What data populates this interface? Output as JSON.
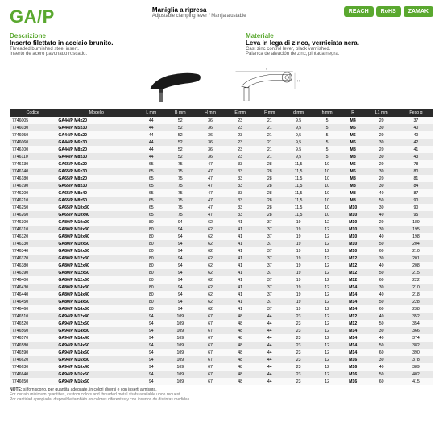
{
  "header": {
    "code": "GA/P",
    "title_it": "Maniglia a ripresa",
    "title_en": "Adjustable clamping lever / Manija ajustable",
    "badges": [
      "REACH",
      "RoHS",
      "ZAMAK"
    ]
  },
  "desc": {
    "label": "Descrizione",
    "it": "Inserto filettato in acciaio brunito.",
    "en": "Threaded burnished steel insert.",
    "es": "Inserto de acero pavonado roscado."
  },
  "mat": {
    "label": "Materiale",
    "it": "Leva in lega di zinco, verniciata nera.",
    "en": "Cast zinc control lever, black varnished.",
    "es": "Palanca de aleación de zinc, pintada negra."
  },
  "columns": [
    "Codice",
    "Modello",
    "L mm",
    "B mm",
    "H mm",
    "E mm",
    "F mm",
    "d mm",
    "h mm",
    "R",
    "L1 mm",
    "Peso g"
  ],
  "rows": [
    [
      "7746005",
      "GA44/P M4x20",
      "44",
      "52",
      "36",
      "23",
      "21",
      "9,5",
      "5",
      "M4",
      "20",
      "37"
    ],
    [
      "7746030",
      "GA44/P M5x30",
      "44",
      "52",
      "36",
      "23",
      "21",
      "9,5",
      "5",
      "M5",
      "30",
      "40"
    ],
    [
      "7746050",
      "GA44/P M6x20",
      "44",
      "52",
      "36",
      "23",
      "21",
      "9,5",
      "5",
      "M6",
      "20",
      "40"
    ],
    [
      "7746060",
      "GA44/P M6x30",
      "44",
      "52",
      "36",
      "23",
      "21",
      "9,5",
      "5",
      "M6",
      "30",
      "42"
    ],
    [
      "7746100",
      "GA44/P M8x20",
      "44",
      "52",
      "36",
      "23",
      "21",
      "9,5",
      "5",
      "M8",
      "20",
      "41"
    ],
    [
      "7746110",
      "GA44/P M8x30",
      "44",
      "52",
      "36",
      "23",
      "21",
      "9,5",
      "5",
      "M8",
      "30",
      "43"
    ],
    [
      "7746130",
      "GA65/P M6x20",
      "65",
      "75",
      "47",
      "33",
      "28",
      "11,5",
      "10",
      "M6",
      "20",
      "78"
    ],
    [
      "7746140",
      "GA65/P M6x30",
      "65",
      "75",
      "47",
      "33",
      "28",
      "11,5",
      "10",
      "M6",
      "30",
      "80"
    ],
    [
      "7746180",
      "GA65/P M8x20",
      "65",
      "75",
      "47",
      "33",
      "28",
      "11,5",
      "10",
      "M8",
      "20",
      "81"
    ],
    [
      "7746190",
      "GA65/P M8x30",
      "65",
      "75",
      "47",
      "33",
      "28",
      "11,5",
      "10",
      "M8",
      "30",
      "84"
    ],
    [
      "7746200",
      "GA65/P M8x40",
      "65",
      "75",
      "47",
      "33",
      "28",
      "11,5",
      "10",
      "M8",
      "40",
      "87"
    ],
    [
      "7746210",
      "GA65/P M8x50",
      "65",
      "75",
      "47",
      "33",
      "28",
      "11,5",
      "10",
      "M8",
      "50",
      "90"
    ],
    [
      "7746250",
      "GA65/P M10x30",
      "65",
      "75",
      "47",
      "33",
      "28",
      "11,5",
      "10",
      "M10",
      "30",
      "90"
    ],
    [
      "7746260",
      "GA65/P M10x40",
      "65",
      "75",
      "47",
      "33",
      "28",
      "11,5",
      "10",
      "M10",
      "40",
      "95"
    ],
    [
      "7746300",
      "GA80/P M10x20",
      "80",
      "94",
      "62",
      "41",
      "37",
      "19",
      "12",
      "M10",
      "20",
      "189"
    ],
    [
      "7746310",
      "GA80/P M10x30",
      "80",
      "94",
      "62",
      "41",
      "37",
      "19",
      "12",
      "M10",
      "30",
      "195"
    ],
    [
      "7746320",
      "GA80/P M10x40",
      "80",
      "94",
      "62",
      "41",
      "37",
      "19",
      "12",
      "M10",
      "40",
      "198"
    ],
    [
      "7746330",
      "GA80/P M10x50",
      "80",
      "94",
      "62",
      "41",
      "37",
      "19",
      "12",
      "M10",
      "50",
      "204"
    ],
    [
      "7746340",
      "GA80/P M10x60",
      "80",
      "94",
      "62",
      "41",
      "37",
      "19",
      "12",
      "M10",
      "60",
      "210"
    ],
    [
      "7746370",
      "GA80/P M12x30",
      "80",
      "94",
      "62",
      "41",
      "37",
      "19",
      "12",
      "M12",
      "30",
      "201"
    ],
    [
      "7746380",
      "GA80/P M12x40",
      "80",
      "94",
      "62",
      "41",
      "37",
      "19",
      "12",
      "M12",
      "40",
      "208"
    ],
    [
      "7746390",
      "GA80/P M12x50",
      "80",
      "94",
      "62",
      "41",
      "37",
      "19",
      "12",
      "M12",
      "50",
      "215"
    ],
    [
      "7746400",
      "GA80/P M12x60",
      "80",
      "94",
      "62",
      "41",
      "37",
      "19",
      "12",
      "M12",
      "60",
      "222"
    ],
    [
      "7746430",
      "GA80/P M14x30",
      "80",
      "94",
      "62",
      "41",
      "37",
      "19",
      "12",
      "M14",
      "30",
      "210"
    ],
    [
      "7746440",
      "GA80/P M14x40",
      "80",
      "94",
      "62",
      "41",
      "37",
      "19",
      "12",
      "M14",
      "40",
      "218"
    ],
    [
      "7746450",
      "GA80/P M14x50",
      "80",
      "94",
      "62",
      "41",
      "37",
      "19",
      "12",
      "M14",
      "50",
      "228"
    ],
    [
      "7746460",
      "GA80/P M14x60",
      "80",
      "94",
      "62",
      "41",
      "37",
      "19",
      "12",
      "M14",
      "60",
      "238"
    ],
    [
      "7746510",
      "GA94/P M12x40",
      "94",
      "109",
      "67",
      "48",
      "44",
      "23",
      "12",
      "M12",
      "40",
      "352"
    ],
    [
      "7746520",
      "GA94/P M12x50",
      "94",
      "109",
      "67",
      "48",
      "44",
      "23",
      "12",
      "M12",
      "50",
      "354"
    ],
    [
      "7746560",
      "GA94/P M14x30",
      "94",
      "109",
      "67",
      "48",
      "44",
      "23",
      "12",
      "M14",
      "30",
      "366"
    ],
    [
      "7746570",
      "GA94/P M14x40",
      "94",
      "109",
      "67",
      "48",
      "44",
      "23",
      "12",
      "M14",
      "40",
      "374"
    ],
    [
      "7746580",
      "GA94/P M14x50",
      "94",
      "109",
      "67",
      "48",
      "44",
      "23",
      "12",
      "M14",
      "50",
      "382"
    ],
    [
      "7746590",
      "GA94/P M14x60",
      "94",
      "109",
      "67",
      "48",
      "44",
      "23",
      "12",
      "M14",
      "60",
      "390"
    ],
    [
      "7746620",
      "GA94/P M16x30",
      "94",
      "109",
      "67",
      "48",
      "44",
      "23",
      "12",
      "M16",
      "30",
      "378"
    ],
    [
      "7746630",
      "GA94/P M16x40",
      "94",
      "109",
      "67",
      "48",
      "44",
      "23",
      "12",
      "M16",
      "40",
      "389"
    ],
    [
      "7746640",
      "GA94/P M16x50",
      "94",
      "109",
      "67",
      "48",
      "44",
      "23",
      "12",
      "M16",
      "50",
      "402"
    ],
    [
      "7746650",
      "GA94/P M16x60",
      "94",
      "109",
      "67",
      "48",
      "44",
      "23",
      "12",
      "M16",
      "60",
      "415"
    ]
  ],
  "note": {
    "label": "NOTE:",
    "it": "si forniscono, per quantità adeguate, in colori diversi e con inserti a misura.",
    "en": "For certain minimum quantities, custom colors and threaded metal studs available upon request.",
    "es": "Por cantidad apropiada, disponible también en colores diferentes y con insertos de distintas medidas."
  }
}
